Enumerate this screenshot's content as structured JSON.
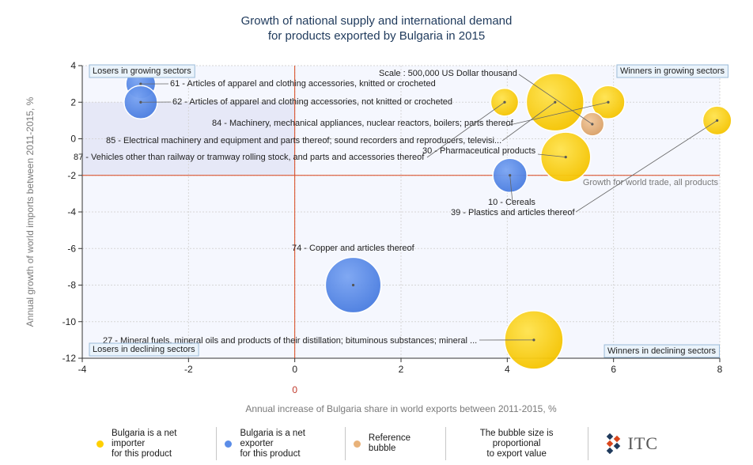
{
  "chart_data": {
    "type": "scatter",
    "title": [
      "Growth of national supply and international demand",
      "for products exported by Bulgaria in 2015"
    ],
    "xlabel": "Annual increase of Bulgaria share in world exports between 2011-2015, %",
    "ylabel": "Annual growth of world imports between 2011-2015, %",
    "xlim": [
      -4,
      8
    ],
    "ylim": [
      -12,
      4
    ],
    "xticks": [
      -4,
      -2,
      0,
      2,
      4,
      6,
      8
    ],
    "yticks": [
      -12,
      -10,
      -8,
      -6,
      -4,
      -2,
      0,
      2,
      4
    ],
    "x_reference_label": "0",
    "world_trade_growth": -2,
    "world_trade_label": "Growth for world trade, all products",
    "grid": true,
    "scale_label": "Scale : 500,000 US Dollar thousand",
    "quadrants": {
      "top_left": "Losers in growing sectors",
      "top_right": "Winners in growing sectors",
      "bottom_left": "Losers in declining sectors",
      "bottom_right": "Winners in declining sectors"
    },
    "colors": {
      "importer": "#ffd000",
      "exporter": "#5b8de8",
      "reference": "#e8b27a",
      "axis_line": "#d9461c",
      "label_red": "#c0392b"
    },
    "points": [
      {
        "label": "61 - Articles of apparel and clothing accessories, knitted or crocheted",
        "x": -2.9,
        "y": 3.0,
        "size": 160000,
        "type": "exporter"
      },
      {
        "label": "62 - Articles of apparel and clothing accessories, not knitted or crocheted",
        "x": -2.9,
        "y": 2.0,
        "size": 200000,
        "type": "exporter"
      },
      {
        "label": "84 - Machinery, mechanical appliances, nuclear reactors, boilers; parts thereof",
        "x": 5.9,
        "y": 2.0,
        "size": 200000,
        "type": "importer"
      },
      {
        "label": "85 - Electrical machinery and equipment and parts thereof; sound recorders and reproducers, televisi...",
        "x": 4.9,
        "y": 2.0,
        "size": 600000,
        "type": "importer"
      },
      {
        "label": "87 - Vehicles other than railway or tramway rolling stock, and parts and accessories thereof",
        "x": 3.95,
        "y": 2.0,
        "size": 140000,
        "type": "importer"
      },
      {
        "label": "30 - Pharmaceutical products",
        "x": 5.1,
        "y": -1.0,
        "size": 450000,
        "type": "importer"
      },
      {
        "label": "10 - Cereals",
        "x": 4.05,
        "y": -2.0,
        "size": 210000,
        "type": "exporter"
      },
      {
        "label": "39 - Plastics and articles thereof",
        "x": 7.95,
        "y": 1.0,
        "size": 150000,
        "type": "importer"
      },
      {
        "label": "74 - Copper and articles thereof",
        "x": 1.1,
        "y": -8.0,
        "size": 560000,
        "type": "exporter"
      },
      {
        "label": "27 - Mineral fuels, mineral oils and products of their distillation; bituminous substances; mineral ...",
        "x": 4.5,
        "y": -11.0,
        "size": 620000,
        "type": "importer"
      },
      {
        "label": "",
        "x": 5.6,
        "y": 0.8,
        "size": 100000,
        "type": "reference"
      }
    ]
  },
  "legend": {
    "importer": "Bulgaria is a net importer\nfor this product",
    "exporter": "Bulgaria is a net exporter\nfor this product",
    "reference": "Reference bubble",
    "note": "The bubble size is proportional\nto export value",
    "logo_text": "ITC"
  }
}
